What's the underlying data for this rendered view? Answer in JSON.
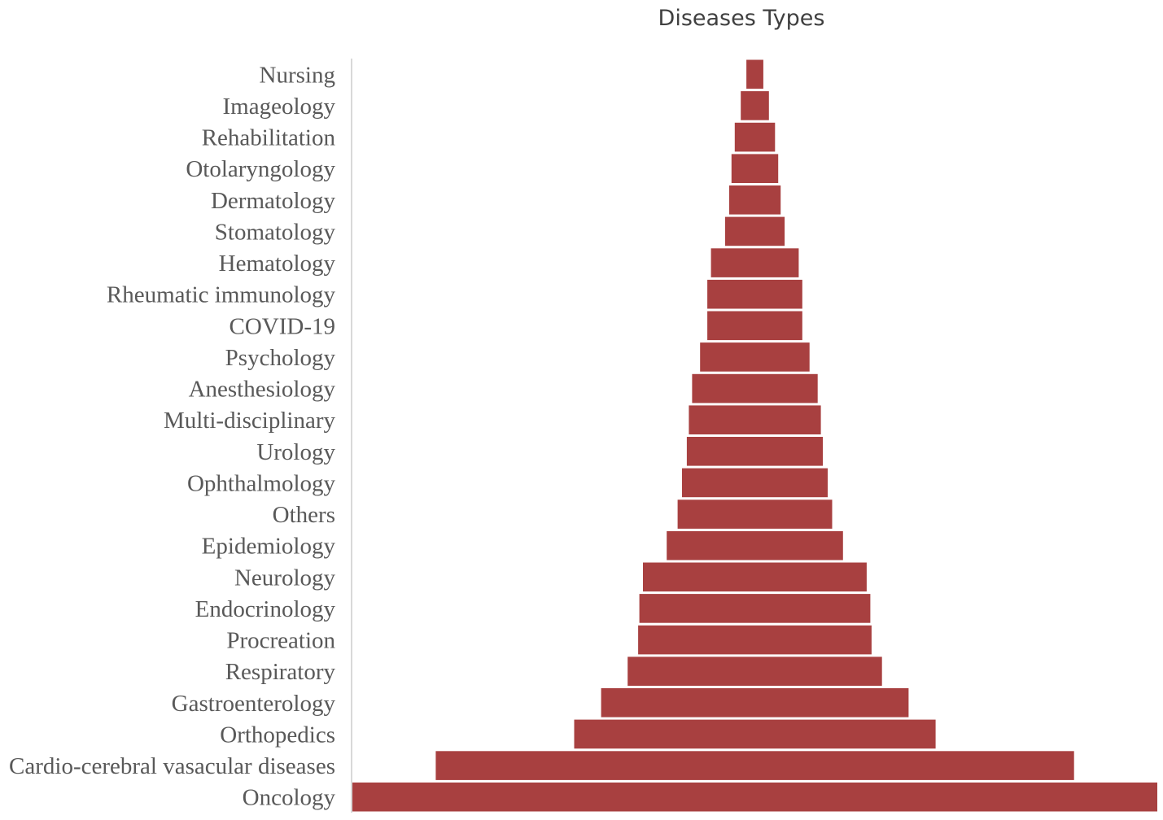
{
  "chart_data": {
    "type": "bar",
    "orientation": "horizontal",
    "style": "funnel-centered",
    "title": "Diseases Types",
    "xlabel": "",
    "ylabel": "",
    "bar_color": "#a84040",
    "grid": false,
    "legend": "none",
    "categories": [
      "Nursing",
      "Imageology",
      "Rehabilitation",
      "Otolaryngology",
      "Dermatology",
      "Stomatology",
      "Hematology",
      "Rheumatic immunology",
      "COVID-19",
      "Psychology",
      "Anesthesiology",
      "Multi-disciplinary",
      "Urology",
      "Ophthalmology",
      "Others",
      "Epidemiology",
      "Neurology",
      "Endocrinology",
      "Procreation",
      "Respiratory",
      "Gastroenterology",
      "Orthopedics",
      "Cardio-cerebral vasacular diseases",
      "Oncology"
    ],
    "values": [
      2.1,
      3.5,
      5.0,
      5.8,
      6.4,
      7.4,
      10.9,
      11.8,
      11.8,
      13.6,
      15.6,
      16.4,
      16.9,
      18.1,
      19.2,
      21.9,
      27.8,
      28.7,
      29.0,
      31.6,
      38.2,
      44.9,
      79.3,
      100
    ]
  }
}
